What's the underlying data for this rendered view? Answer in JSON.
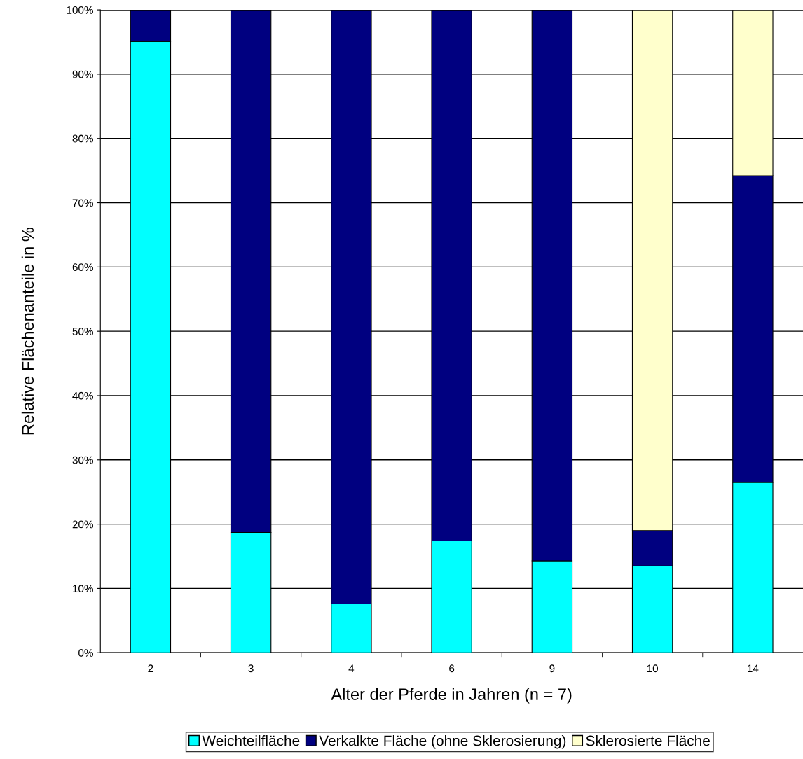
{
  "chart_data": {
    "type": "bar",
    "stacked": true,
    "xlabel": "Alter der Pferde in Jahren (n = 7)",
    "ylabel": "Relative Flächenanteile in %",
    "categories": [
      "2",
      "3",
      "4",
      "6",
      "9",
      "10",
      "14"
    ],
    "series": [
      {
        "name": "Weichteilfläche",
        "color": "#00ffff",
        "values": [
          95.1,
          18.7,
          7.6,
          17.4,
          14.3,
          13.5,
          26.5
        ]
      },
      {
        "name": "Verkalkte Fläche (ohne Sklerosierung)",
        "color": "#000080",
        "values": [
          4.9,
          81.3,
          92.4,
          82.6,
          85.7,
          5.5,
          47.7
        ]
      },
      {
        "name": "Sklerosierte Fläche",
        "color": "#ffffcc",
        "values": [
          null,
          null,
          null,
          null,
          null,
          81.0,
          25.8
        ]
      }
    ],
    "ylim": [
      0,
      100
    ],
    "yticks": [
      {
        "value": 0,
        "label": "0%"
      },
      {
        "value": 10,
        "label": "10%"
      },
      {
        "value": 20,
        "label": "20%"
      },
      {
        "value": 30,
        "label": "30%"
      },
      {
        "value": 40,
        "label": "40%"
      },
      {
        "value": 50,
        "label": "50%"
      },
      {
        "value": 60,
        "label": "60%"
      },
      {
        "value": 70,
        "label": "70%"
      },
      {
        "value": 80,
        "label": "80%"
      },
      {
        "value": 90,
        "label": "90%"
      },
      {
        "value": 100,
        "label": "100%"
      }
    ],
    "grid": "y",
    "legend": "bottom"
  }
}
